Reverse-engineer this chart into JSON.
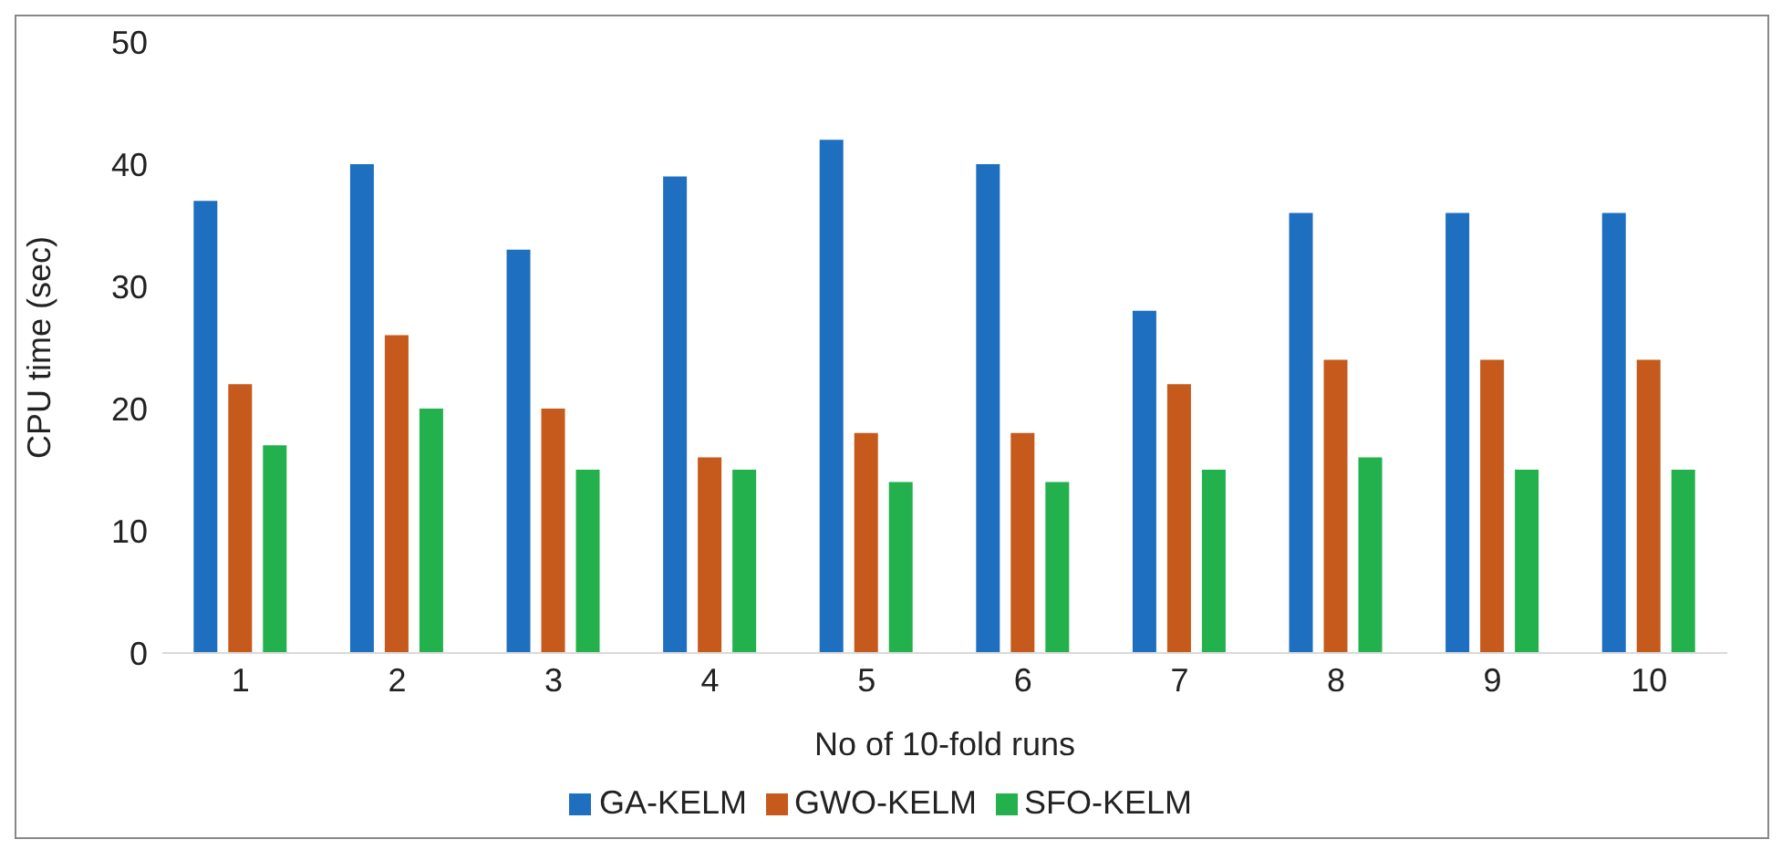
{
  "chart_data": {
    "type": "bar",
    "xlabel": "No of 10-fold runs",
    "ylabel": "CPU time (sec)",
    "categories": [
      "1",
      "2",
      "3",
      "4",
      "5",
      "6",
      "7",
      "8",
      "9",
      "10"
    ],
    "series": [
      {
        "name": "GA-KELM",
        "color": "#1f6fc0",
        "values": [
          37,
          40,
          33,
          39,
          42,
          40,
          28,
          36,
          36,
          36
        ]
      },
      {
        "name": "GWO-KELM",
        "color": "#c55a1c",
        "values": [
          22,
          26,
          20,
          16,
          18,
          18,
          22,
          24,
          24,
          24
        ]
      },
      {
        "name": "SFO-KELM",
        "color": "#22b14c",
        "values": [
          17,
          20,
          15,
          15,
          14,
          14,
          15,
          16,
          15,
          15
        ]
      }
    ],
    "ylim": [
      0,
      50
    ],
    "yticks": [
      0,
      10,
      20,
      30,
      40,
      50
    ],
    "grid": false,
    "legend": "bottom"
  }
}
